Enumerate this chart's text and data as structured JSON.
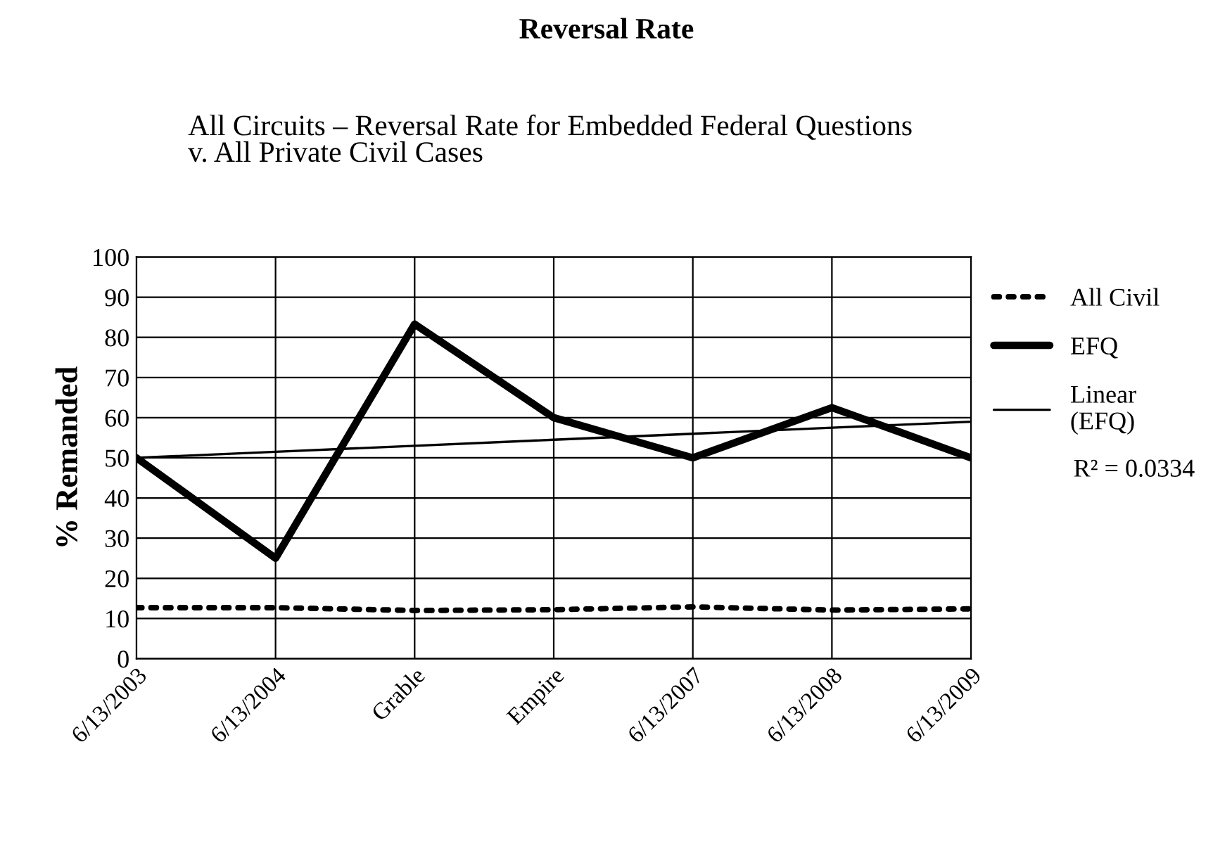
{
  "chart_data": {
    "type": "line",
    "title": "Reversal Rate",
    "subtitle": "All Circuits – Reversal Rate for Embedded Federal Questions\nv. All Private Civil Cases",
    "ylabel": "% Remanded",
    "categories": [
      "6/13/2003",
      "6/13/2004",
      "Grable",
      "Empire",
      "6/13/2007",
      "6/13/2008",
      "6/13/2009"
    ],
    "series": [
      {
        "name": "All Civil",
        "color": "#000000",
        "line_style": "dotted",
        "values": [
          12.7,
          12.7,
          12.0,
          12.2,
          12.9,
          12.1,
          12.4
        ]
      },
      {
        "name": "EFQ",
        "color": "#000000",
        "line_style": "solid",
        "values": [
          50,
          25,
          83.3,
          60,
          50,
          62.5,
          50
        ]
      },
      {
        "name": "Linear\n(EFQ)",
        "color": "#000000",
        "line_style": "solid",
        "values": [
          50,
          51.5,
          53,
          54.5,
          56,
          57.5,
          59
        ]
      }
    ],
    "annotations": [
      "R² = 0.0334"
    ],
    "ylim": [
      0,
      100
    ],
    "yticks": [
      0,
      10,
      20,
      30,
      40,
      50,
      60,
      70,
      80,
      90,
      100
    ],
    "grid": true,
    "legend": "right",
    "marker": "none"
  }
}
